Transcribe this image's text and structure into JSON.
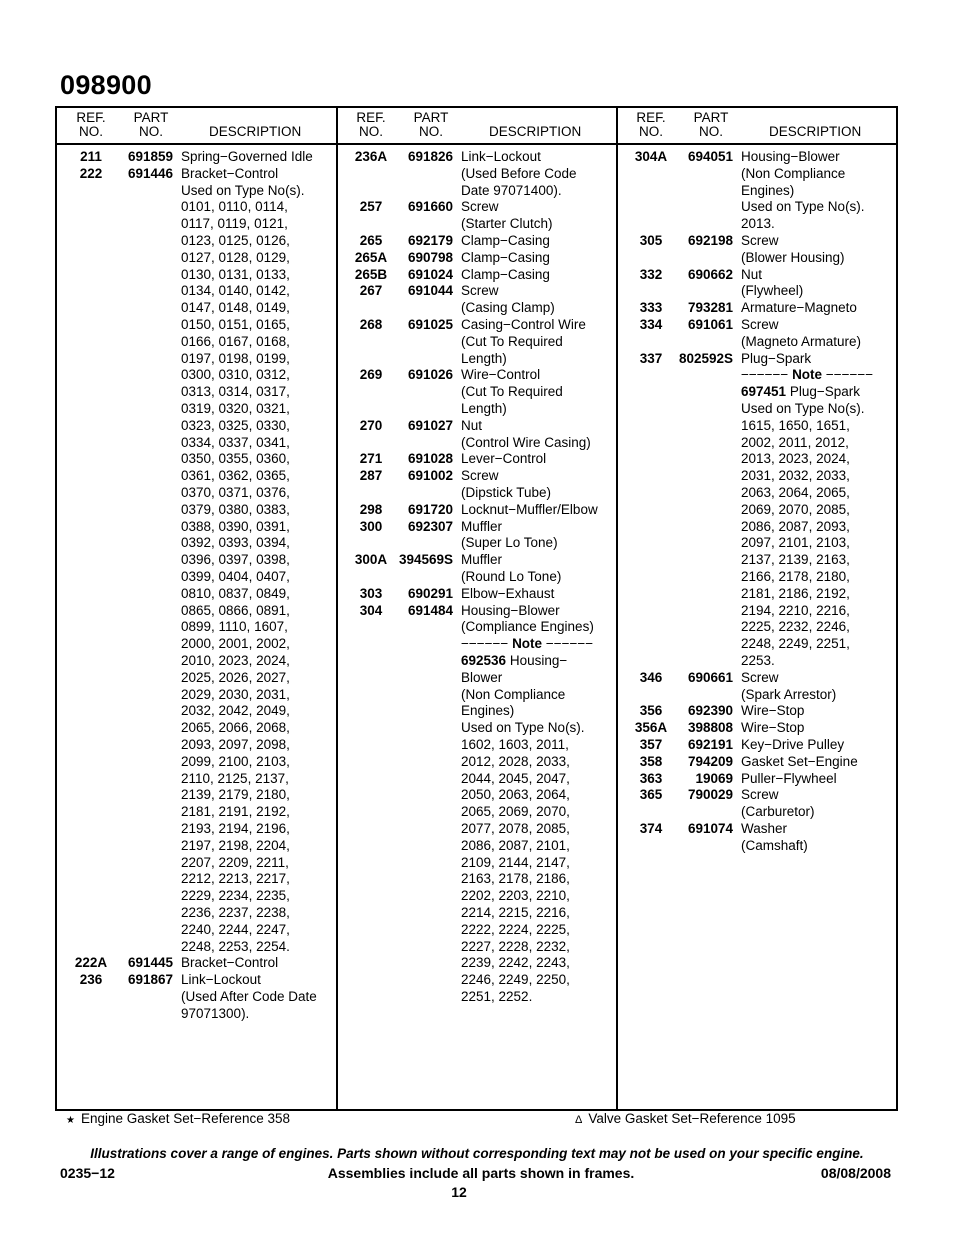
{
  "title": "098900",
  "headers": {
    "ref": "REF.\nNO.",
    "part": "PART\nNO.",
    "desc": "DESCRIPTION"
  },
  "columns": [
    {
      "lines": [
        {
          "ref": "211",
          "part": "691859",
          "desc": "Spring−Governed Idle"
        },
        {
          "ref": "222",
          "part": "691446",
          "desc": "Bracket−Control"
        },
        {
          "desc": "Used on Type No(s)."
        },
        {
          "desc": "0101, 0110, 0114,"
        },
        {
          "desc": "0117, 0119, 0121,"
        },
        {
          "desc": "0123, 0125, 0126,"
        },
        {
          "desc": "0127, 0128, 0129,"
        },
        {
          "desc": "0130, 0131, 0133,"
        },
        {
          "desc": "0134, 0140, 0142,"
        },
        {
          "desc": "0147, 0148, 0149,"
        },
        {
          "desc": "0150, 0151, 0165,"
        },
        {
          "desc": "0166, 0167, 0168,"
        },
        {
          "desc": "0197, 0198, 0199,"
        },
        {
          "desc": "0300, 0310, 0312,"
        },
        {
          "desc": "0313, 0314, 0317,"
        },
        {
          "desc": "0319, 0320, 0321,"
        },
        {
          "desc": "0323, 0325, 0330,"
        },
        {
          "desc": "0334, 0337, 0341,"
        },
        {
          "desc": "0350, 0355, 0360,"
        },
        {
          "desc": "0361, 0362, 0365,"
        },
        {
          "desc": "0370, 0371, 0376,"
        },
        {
          "desc": "0379, 0380, 0383,"
        },
        {
          "desc": "0388, 0390, 0391,"
        },
        {
          "desc": "0392, 0393, 0394,"
        },
        {
          "desc": "0396, 0397, 0398,"
        },
        {
          "desc": "0399, 0404, 0407,"
        },
        {
          "desc": "0810, 0837, 0849,"
        },
        {
          "desc": "0865, 0866, 0891,"
        },
        {
          "desc": "0899, 1110, 1607,"
        },
        {
          "desc": "2000, 2001, 2002,"
        },
        {
          "desc": "2010, 2023, 2024,"
        },
        {
          "desc": "2025, 2026, 2027,"
        },
        {
          "desc": "2029, 2030, 2031,"
        },
        {
          "desc": "2032, 2042, 2049,"
        },
        {
          "desc": "2065, 2066, 2068,"
        },
        {
          "desc": "2093, 2097, 2098,"
        },
        {
          "desc": "2099, 2100, 2103,"
        },
        {
          "desc": "2110, 2125, 2137,"
        },
        {
          "desc": "2139, 2179, 2180,"
        },
        {
          "desc": "2181, 2191, 2192,"
        },
        {
          "desc": "2193, 2194, 2196,"
        },
        {
          "desc": "2197, 2198, 2204,"
        },
        {
          "desc": "2207, 2209, 2211,"
        },
        {
          "desc": "2212, 2213, 2217,"
        },
        {
          "desc": "2229, 2234, 2235,"
        },
        {
          "desc": "2236, 2237, 2238,"
        },
        {
          "desc": "2240, 2244, 2247,"
        },
        {
          "desc": "2248, 2253, 2254."
        },
        {
          "ref": "222A",
          "part": "691445",
          "desc": "Bracket−Control"
        },
        {
          "ref": "236",
          "part": "691867",
          "desc": "Link−Lockout"
        },
        {
          "desc": "(Used After Code Date"
        },
        {
          "desc": "97071300)."
        }
      ]
    },
    {
      "lines": [
        {
          "ref": "236A",
          "part": "691826",
          "desc": "Link−Lockout"
        },
        {
          "desc": "(Used Before Code"
        },
        {
          "desc": "Date 97071400)."
        },
        {
          "ref": "257",
          "part": "691660",
          "desc": "Screw"
        },
        {
          "desc": "(Starter Clutch)"
        },
        {
          "ref": "265",
          "part": "692179",
          "desc": "Clamp−Casing"
        },
        {
          "ref": "265A",
          "part": "690798",
          "desc": "Clamp−Casing"
        },
        {
          "ref": "265B",
          "part": "691024",
          "desc": "Clamp−Casing"
        },
        {
          "ref": "267",
          "part": "691044",
          "desc": "Screw"
        },
        {
          "desc": "(Casing Clamp)"
        },
        {
          "ref": "268",
          "part": "691025",
          "desc": "Casing−Control Wire"
        },
        {
          "desc": "(Cut To Required"
        },
        {
          "desc": "Length)"
        },
        {
          "ref": "269",
          "part": "691026",
          "desc": "Wire−Control"
        },
        {
          "desc": "(Cut To Required"
        },
        {
          "desc": "Length)"
        },
        {
          "ref": "270",
          "part": "691027",
          "desc": "Nut"
        },
        {
          "desc": "(Control Wire Casing)"
        },
        {
          "ref": "271",
          "part": "691028",
          "desc": "Lever−Control"
        },
        {
          "ref": "287",
          "part": "691002",
          "desc": "Screw"
        },
        {
          "desc": "(Dipstick Tube)"
        },
        {
          "ref": "298",
          "part": "691720",
          "desc": "Locknut−Muffler/Elbow"
        },
        {
          "ref": "300",
          "part": "692307",
          "desc": "Muffler"
        },
        {
          "desc": "(Super Lo Tone)"
        },
        {
          "ref": "300A",
          "part": "394569S",
          "desc": "Muffler"
        },
        {
          "desc": "(Round Lo Tone)"
        },
        {
          "ref": "303",
          "part": "690291",
          "desc": "Elbow−Exhaust"
        },
        {
          "ref": "304",
          "part": "691484",
          "desc": "Housing−Blower"
        },
        {
          "desc": "(Compliance Engines)"
        },
        {
          "note_pre": "−−−−−− ",
          "note": "Note",
          "note_post": " −−−−−−"
        },
        {
          "desc_bold": "692536",
          "desc": " Housing−"
        },
        {
          "desc": "Blower"
        },
        {
          "desc": "(Non Compliance"
        },
        {
          "desc": "Engines)"
        },
        {
          "desc": "Used on Type No(s)."
        },
        {
          "desc": "1602, 1603, 2011,"
        },
        {
          "desc": "2012, 2028, 2033,"
        },
        {
          "desc": "2044, 2045, 2047,"
        },
        {
          "desc": "2050, 2063, 2064,"
        },
        {
          "desc": "2065, 2069, 2070,"
        },
        {
          "desc": "2077, 2078, 2085,"
        },
        {
          "desc": "2086, 2087, 2101,"
        },
        {
          "desc": "2109, 2144, 2147,"
        },
        {
          "desc": "2163, 2178, 2186,"
        },
        {
          "desc": "2202, 2203, 2210,"
        },
        {
          "desc": "2214, 2215, 2216,"
        },
        {
          "desc": "2222, 2224, 2225,"
        },
        {
          "desc": "2227, 2228, 2232,"
        },
        {
          "desc": "2239, 2242, 2243,"
        },
        {
          "desc": "2246, 2249, 2250,"
        },
        {
          "desc": "2251, 2252."
        }
      ]
    },
    {
      "lines": [
        {
          "ref": "304A",
          "part": "694051",
          "desc": "Housing−Blower"
        },
        {
          "desc": "(Non Compliance"
        },
        {
          "desc": "Engines)"
        },
        {
          "desc": "Used on Type No(s)."
        },
        {
          "desc": "2013."
        },
        {
          "ref": "305",
          "part": "692198",
          "desc": "Screw"
        },
        {
          "desc": "(Blower Housing)"
        },
        {
          "ref": "332",
          "part": "690662",
          "desc": "Nut"
        },
        {
          "desc": "(Flywheel)"
        },
        {
          "ref": "333",
          "part": "793281",
          "desc": "Armature−Magneto"
        },
        {
          "ref": "334",
          "part": "691061",
          "desc": "Screw"
        },
        {
          "desc": "(Magneto Armature)"
        },
        {
          "ref": "337",
          "part": "802592S",
          "desc": "Plug−Spark"
        },
        {
          "note_pre": "−−−−−− ",
          "note": "Note",
          "note_post": " −−−−−−"
        },
        {
          "desc_bold": "697451",
          "desc": " Plug−Spark"
        },
        {
          "desc": "Used on Type No(s)."
        },
        {
          "desc": "1615, 1650, 1651,"
        },
        {
          "desc": "2002, 2011, 2012,"
        },
        {
          "desc": "2013, 2023, 2024,"
        },
        {
          "desc": "2031, 2032, 2033,"
        },
        {
          "desc": "2063, 2064, 2065,"
        },
        {
          "desc": "2069, 2070, 2085,"
        },
        {
          "desc": "2086, 2087, 2093,"
        },
        {
          "desc": "2097, 2101, 2103,"
        },
        {
          "desc": "2137, 2139, 2163,"
        },
        {
          "desc": "2166, 2178, 2180,"
        },
        {
          "desc": "2181, 2186, 2192,"
        },
        {
          "desc": "2194, 2210, 2216,"
        },
        {
          "desc": "2225, 2232, 2246,"
        },
        {
          "desc": "2248, 2249, 2251,"
        },
        {
          "desc": "2253."
        },
        {
          "ref": "346",
          "part": "690661",
          "desc": "Screw"
        },
        {
          "desc": "(Spark Arrestor)"
        },
        {
          "ref": "356",
          "part": "692390",
          "desc": "Wire−Stop"
        },
        {
          "ref": "356A",
          "part": "398808",
          "desc": "Wire−Stop"
        },
        {
          "ref": "357",
          "part": "692191",
          "desc": "Key−Drive Pulley"
        },
        {
          "ref": "358",
          "part": "794209",
          "desc": "Gasket Set−Engine"
        },
        {
          "ref": "363",
          "part": "19069",
          "desc": "Puller−Flywheel"
        },
        {
          "ref": "365",
          "part": "790029",
          "desc": "Screw"
        },
        {
          "desc": "(Carburetor)"
        },
        {
          "ref": "374",
          "part": "691074",
          "desc": "Washer"
        },
        {
          "desc": "(Camshaft)"
        }
      ]
    }
  ],
  "footnotes": {
    "engine_gasket_symbol": "★",
    "engine_gasket": "Engine Gasket Set−Reference 358",
    "valve_gasket_symbol": "Δ",
    "valve_gasket": "Valve Gasket Set−Reference 1095"
  },
  "footer": {
    "disclaimer": "Illustrations cover a range of engines. Parts shown without corresponding text may not be used on your specific engine.",
    "doc_code": "0235−12",
    "assemblies_note": "Assemblies include all parts shown in frames.",
    "date": "08/08/2008",
    "page_number": "12"
  }
}
